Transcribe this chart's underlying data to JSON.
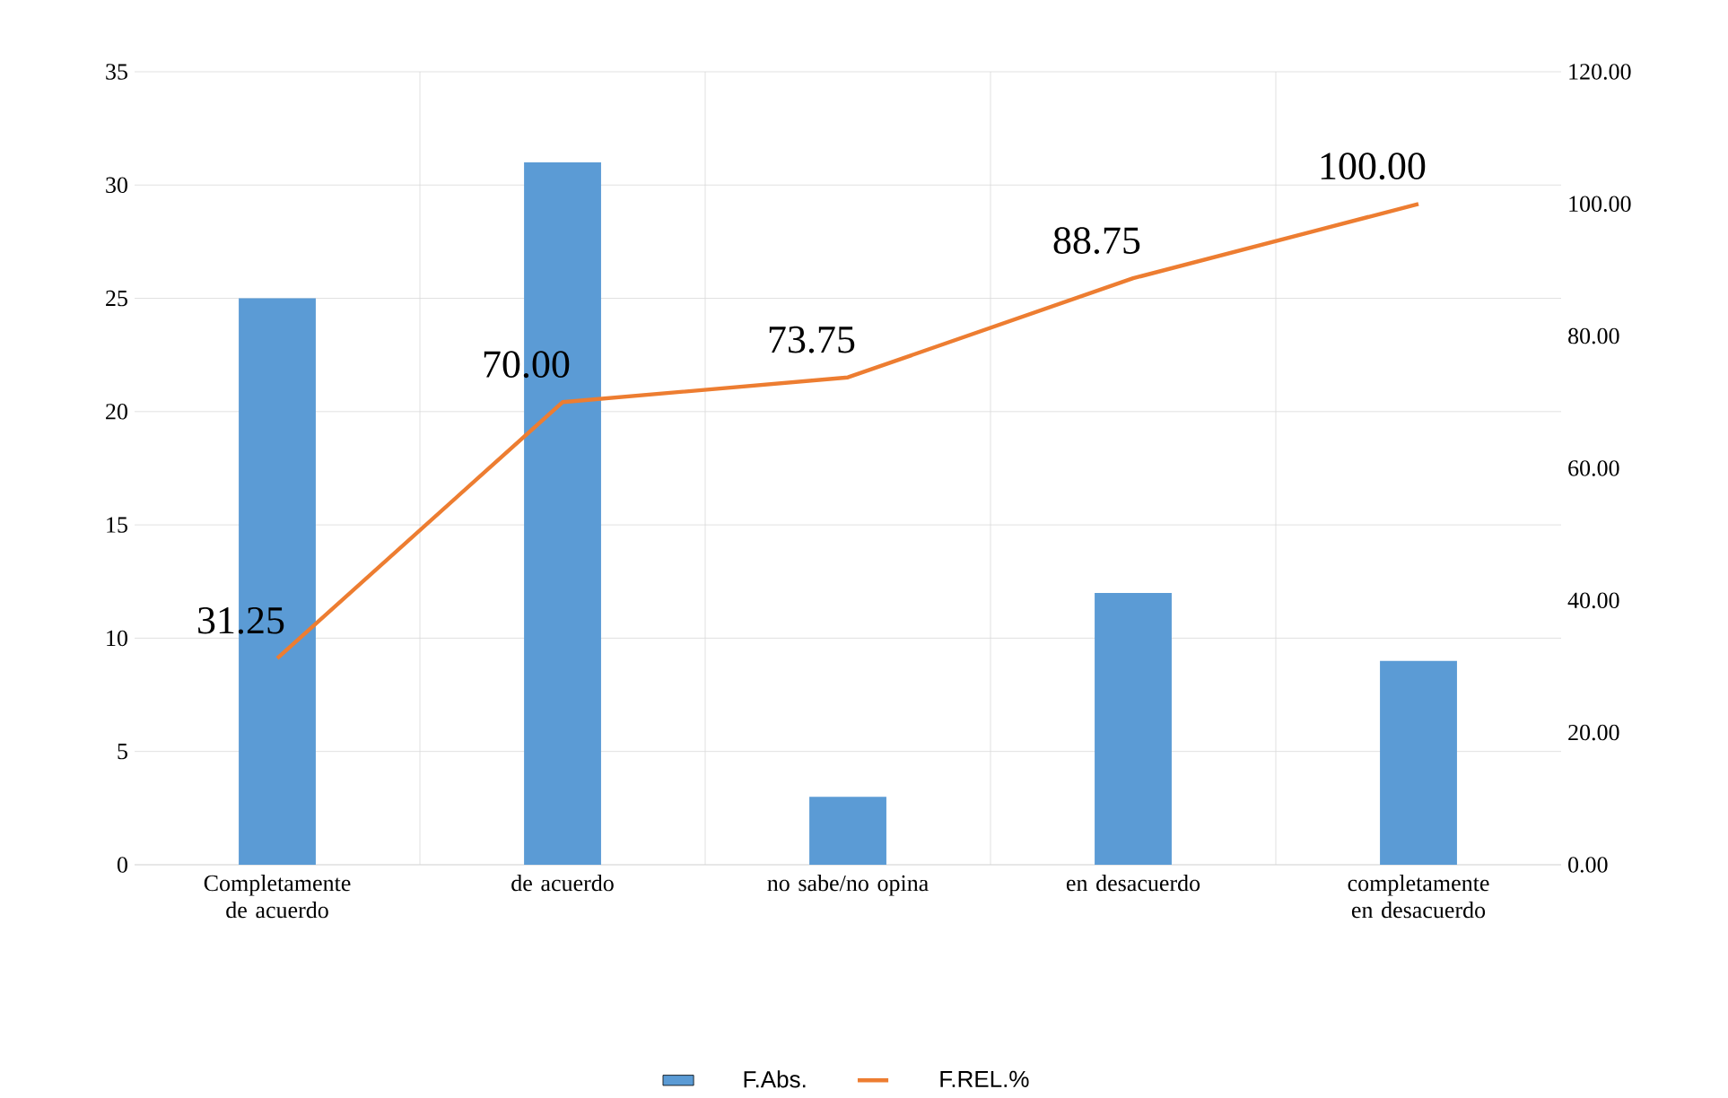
{
  "chart_data": {
    "type": "bar",
    "categories": [
      "Completamente de acuerdo",
      "de acuerdo",
      "no sabe/no opina",
      "en desacuerdo",
      "completamente en desacuerdo"
    ],
    "series": [
      {
        "name": "F.Abs.",
        "color": "#5b9bd5",
        "values": [
          25,
          31,
          3,
          12,
          9
        ]
      },
      {
        "name": "F.REL.%",
        "type": "line",
        "axis": "y2",
        "color": "#ed7d31",
        "values": [
          31.25,
          70.0,
          73.75,
          88.75,
          100.0
        ],
        "value_labels": [
          "31.25",
          "70.00",
          "73.75",
          "88.75",
          "100.00"
        ],
        "marker": "none"
      }
    ],
    "ylim": [
      0,
      35
    ],
    "yticks": [
      0,
      5,
      10,
      15,
      20,
      25,
      30,
      35
    ],
    "y2lim": [
      0,
      120
    ],
    "y2ticks": [
      {
        "value": 0,
        "label": "0.00"
      },
      {
        "value": 20,
        "label": "20.00"
      },
      {
        "value": 40,
        "label": "40.00"
      },
      {
        "value": 60,
        "label": "60.00"
      },
      {
        "value": 80,
        "label": "80.00"
      },
      {
        "value": 100,
        "label": "100.00"
      },
      {
        "value": 120,
        "label": "120.00"
      }
    ],
    "grid": true,
    "legend": "bottom"
  }
}
